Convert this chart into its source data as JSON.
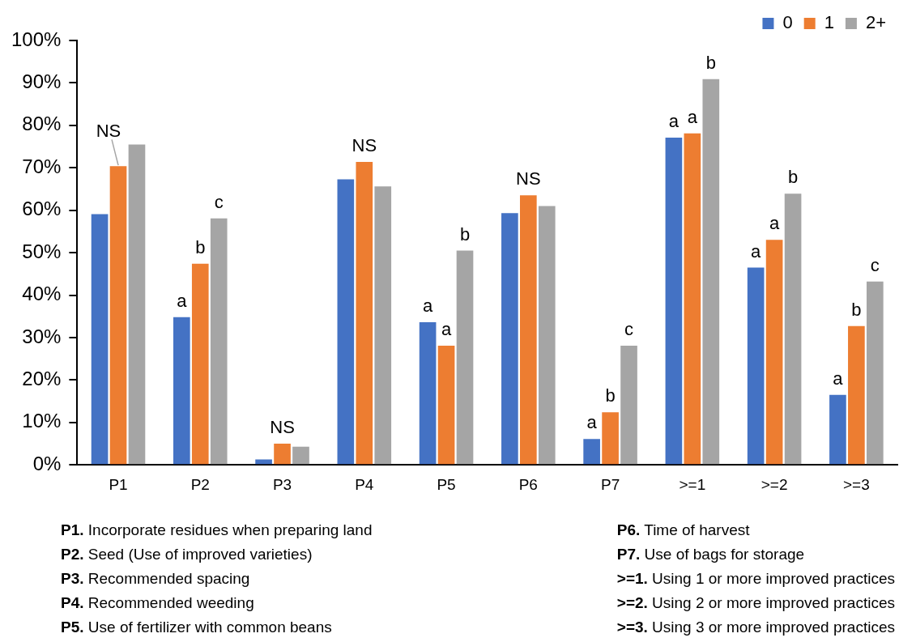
{
  "chart_data": {
    "type": "bar",
    "categories": [
      "P1",
      "P2",
      "P3",
      "P4",
      "P5",
      "P6",
      "P7",
      ">=1",
      ">=2",
      ">=3"
    ],
    "series": [
      {
        "name": "0",
        "color": "#4472c4",
        "values": [
          59.1,
          34.8,
          1.3,
          67.3,
          33.6,
          59.3,
          6.1,
          77.1,
          46.5,
          16.5
        ],
        "value_labels": [
          null,
          "a",
          null,
          null,
          "a",
          null,
          "a",
          "a",
          "a",
          "a"
        ]
      },
      {
        "name": "1",
        "color": "#ed7d31",
        "values": [
          70.4,
          47.4,
          5.0,
          71.4,
          28.1,
          63.5,
          12.4,
          78.1,
          53.0,
          32.7
        ],
        "value_labels": [
          "NS",
          "b",
          "NS",
          "NS",
          "a",
          "NS",
          "b",
          "a",
          "a",
          "b"
        ]
      },
      {
        "name": "2+",
        "color": "#a5a5a5",
        "values": [
          75.5,
          58.1,
          4.3,
          65.6,
          50.5,
          61.0,
          28.1,
          90.9,
          63.9,
          43.2
        ],
        "value_labels": [
          null,
          "c",
          null,
          null,
          "b",
          null,
          "c",
          "b",
          "b",
          "c"
        ]
      }
    ],
    "ylim": [
      0,
      100
    ],
    "yticks": [
      {
        "value": 0,
        "label": "0%"
      },
      {
        "value": 10,
        "label": "10%"
      },
      {
        "value": 20,
        "label": "20%"
      },
      {
        "value": 30,
        "label": "30%"
      },
      {
        "value": 40,
        "label": "40%"
      },
      {
        "value": 50,
        "label": "50%"
      },
      {
        "value": 60,
        "label": "60%"
      },
      {
        "value": 70,
        "label": "70%"
      },
      {
        "value": 80,
        "label": "80%"
      },
      {
        "value": 90,
        "label": "90%"
      },
      {
        "value": 100,
        "label": "100%"
      }
    ],
    "grid": false,
    "legend": "top right",
    "annotations": [
      "P1. Incorporate residues when preparing land",
      "P2. Seed (Use of improved varieties)",
      "P3. Recommended spacing",
      "P4. Recommended weeding",
      "P5. Use of fertilizer with common beans",
      "P6. Time of harvest",
      "P7. Use of bags for storage",
      ">=1. Using 1 or more improved practices",
      ">=2. Using 2 or more improved practices",
      ">=3. Using 3 or more improved practices"
    ]
  }
}
